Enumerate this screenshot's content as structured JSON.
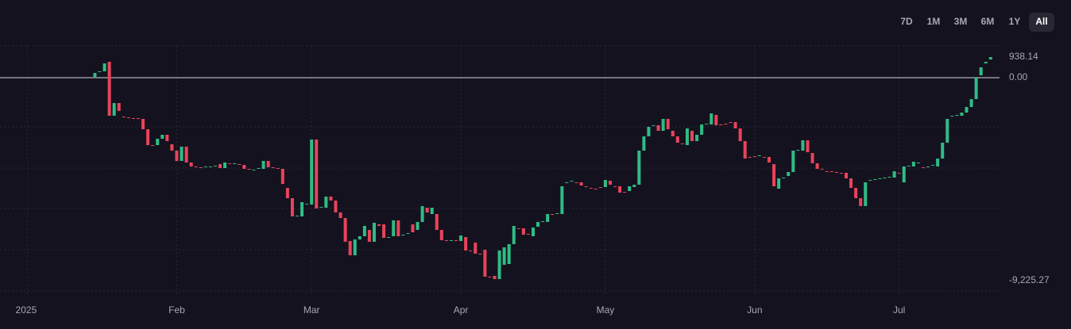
{
  "controls": {
    "ranges": [
      "7D",
      "1M",
      "3M",
      "6M",
      "1Y",
      "All"
    ],
    "selected_index": 5
  },
  "chart_data": {
    "type": "candlestick",
    "up_color": "#2ebd85",
    "down_color": "#e8445a",
    "xlim": [
      -5.7,
      202.5
    ],
    "ylim": [
      -9803,
      2090
    ],
    "xticks": [
      {
        "value": 0,
        "label": "2025"
      },
      {
        "value": 31,
        "label": "Feb"
      },
      {
        "value": 59,
        "label": "Mar"
      },
      {
        "value": 90,
        "label": "Apr"
      },
      {
        "value": 120,
        "label": "May"
      },
      {
        "value": 151,
        "label": "Jun"
      },
      {
        "value": 181,
        "label": "Jul"
      }
    ],
    "yticks": [
      {
        "value": 938.14,
        "label": "938.14"
      },
      {
        "value": 0,
        "label": "0.00"
      },
      {
        "value": -9225.27,
        "label": "-9,225.27"
      }
    ],
    "zero_line": true,
    "x": [
      14,
      15,
      16,
      17,
      18,
      19,
      20,
      21,
      22,
      23,
      24,
      25,
      26,
      27,
      28,
      29,
      30,
      31,
      32,
      33,
      34,
      35,
      36,
      37,
      38,
      39,
      40,
      41,
      42,
      43,
      44,
      45,
      46,
      47,
      48,
      49,
      50,
      51,
      52,
      53,
      54,
      55,
      56,
      57,
      58,
      59,
      60,
      61,
      62,
      63,
      64,
      65,
      66,
      67,
      68,
      69,
      70,
      71,
      72,
      73,
      74,
      75,
      76,
      77,
      78,
      79,
      80,
      81,
      82,
      83,
      84,
      85,
      86,
      87,
      88,
      89,
      90,
      91,
      92,
      93,
      94,
      95,
      96,
      97,
      98,
      99,
      100,
      101,
      102,
      103,
      104,
      105,
      106,
      107,
      108,
      109,
      110,
      111,
      112,
      113,
      114,
      115,
      116,
      117,
      118,
      119,
      120,
      121,
      122,
      123,
      124,
      125,
      126,
      127,
      128,
      129,
      130,
      131,
      132,
      133,
      134,
      135,
      136,
      137,
      138,
      139,
      140,
      141,
      142,
      143,
      144,
      145,
      146,
      147,
      148,
      149,
      150,
      151,
      152,
      153,
      154,
      155,
      156,
      157,
      158,
      159,
      160,
      161,
      162,
      163,
      164,
      165,
      166,
      167,
      168,
      169,
      170,
      171,
      172,
      173,
      174,
      175,
      176,
      177,
      178,
      179,
      180,
      181,
      182,
      183,
      184,
      185,
      186,
      187,
      188,
      189,
      190,
      191,
      192,
      193,
      194,
      195,
      196,
      197,
      198,
      199,
      200
    ],
    "open": [
      36,
      252,
      288,
      721,
      -1730,
      -1153,
      -1766,
      -1802,
      -1838,
      -1838,
      -1874,
      -2343,
      -3064,
      -3064,
      -2775,
      -2595,
      -3027,
      -3316,
      -3784,
      -3135,
      -3856,
      -4036,
      -4072,
      -4072,
      -4072,
      -4036,
      -3928,
      -4109,
      -3892,
      -3928,
      -3928,
      -3964,
      -4145,
      -4217,
      -4145,
      -4145,
      -3784,
      -4072,
      -4109,
      -4145,
      -5010,
      -5478,
      -6307,
      -6307,
      -5766,
      -5766,
      -2811,
      -5911,
      -5911,
      -5406,
      -5586,
      -6127,
      -6379,
      -7424,
      -8073,
      -7352,
      -7208,
      -6920,
      -7460,
      -6667,
      -6667,
      -7280,
      -7208,
      -6487,
      -7172,
      -7100,
      -6667,
      -6920,
      -6559,
      -5911,
      -6199,
      -6199,
      -6920,
      -7388,
      -7424,
      -7388,
      -7424,
      -7244,
      -7857,
      -7496,
      -8001,
      -7821,
      -9046,
      -9010,
      -9154,
      -8505,
      -8469,
      -7568,
      -6848,
      -6848,
      -7100,
      -7208,
      -6776,
      -6559,
      -6559,
      -6199,
      -6199,
      -6199,
      -4793,
      -4721,
      -4757,
      -4757,
      -4937,
      -5010,
      -5046,
      -4973,
      -4973,
      -4685,
      -4937,
      -4937,
      -5190,
      -5154,
      -4973,
      -4865,
      -3316,
      -2667,
      -2198,
      -2162,
      -2415,
      -1874,
      -2415,
      -2667,
      -2991,
      -3064,
      -2415,
      -2883,
      -2595,
      -2126,
      -2126,
      -1694,
      -2126,
      -2090,
      -2018,
      -2018,
      -2307,
      -2883,
      -3604,
      -3568,
      -3568,
      -3604,
      -3604,
      -3928,
      -5046,
      -4577,
      -4469,
      -4289,
      -3316,
      -3316,
      -2847,
      -3424,
      -3892,
      -4145,
      -4253,
      -4253,
      -4289,
      -4325,
      -4325,
      -4577,
      -5010,
      -5478,
      -5838,
      -4685,
      -4649,
      -4613,
      -4577,
      -4541,
      -4541,
      -4325,
      -4757,
      -4036,
      -4036,
      -3892,
      -4072,
      -4072,
      -4000,
      -4036,
      -3676,
      -2955,
      -1766,
      -1730,
      -1730,
      -1586,
      -1333,
      -973,
      108,
      649,
      829
    ],
    "close": [
      216,
      288,
      649,
      -1730,
      -1153,
      -1514,
      -1802,
      -1838,
      -1874,
      -1874,
      -2343,
      -3064,
      -3099,
      -2775,
      -2595,
      -2883,
      -3316,
      -3784,
      -3135,
      -3856,
      -4036,
      -4072,
      -4109,
      -4036,
      -4036,
      -4000,
      -4109,
      -3856,
      -3928,
      -3892,
      -3964,
      -4145,
      -4181,
      -4181,
      -4109,
      -3784,
      -4072,
      -4109,
      -4145,
      -4829,
      -5478,
      -6307,
      -6271,
      -5658,
      -5730,
      -2811,
      -5947,
      -5875,
      -5406,
      -5586,
      -6127,
      -6379,
      -7460,
      -8073,
      -7352,
      -7208,
      -6739,
      -7460,
      -6595,
      -6739,
      -7280,
      -7244,
      -6487,
      -7208,
      -7136,
      -7064,
      -7028,
      -6559,
      -5838,
      -6127,
      -5911,
      -6920,
      -7388,
      -7424,
      -7388,
      -7424,
      -7172,
      -7857,
      -7893,
      -8001,
      -8037,
      -9046,
      -9082,
      -9154,
      -7857,
      -7713,
      -7568,
      -6739,
      -6884,
      -7136,
      -7136,
      -6812,
      -6559,
      -6523,
      -6199,
      -6235,
      -6163,
      -4937,
      -4757,
      -4685,
      -4793,
      -4901,
      -4973,
      -5046,
      -5082,
      -5010,
      -4649,
      -4865,
      -4973,
      -5226,
      -5226,
      -4937,
      -4865,
      -3316,
      -2667,
      -2234,
      -2162,
      -2415,
      -1874,
      -2343,
      -2667,
      -2955,
      -3027,
      -2307,
      -2883,
      -2595,
      -2126,
      -2090,
      -1622,
      -2162,
      -2162,
      -2126,
      -2054,
      -2307,
      -2883,
      -3676,
      -3640,
      -3604,
      -3532,
      -3640,
      -3856,
      -4937,
      -4577,
      -4541,
      -4289,
      -3316,
      -3280,
      -2847,
      -3388,
      -3892,
      -4145,
      -4181,
      -4289,
      -4289,
      -4325,
      -4361,
      -4577,
      -5010,
      -5478,
      -5838,
      -4757,
      -4649,
      -4613,
      -4577,
      -4541,
      -4505,
      -4253,
      -4361,
      -4036,
      -4000,
      -3820,
      -3856,
      -4109,
      -4036,
      -3964,
      -3676,
      -2955,
      -1874,
      -1730,
      -1694,
      -1586,
      -1333,
      -973,
      0,
      469,
      721,
      938.14
    ]
  }
}
